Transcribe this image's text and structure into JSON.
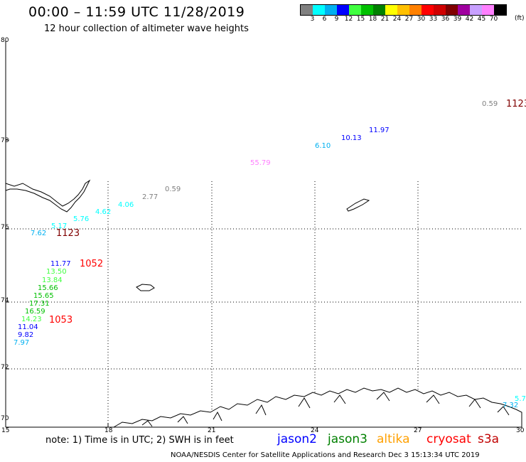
{
  "title": "00:00 – 11:59 UTC 11/28/2019",
  "subtitle": "12 hour collection of altimeter wave heights",
  "legend": {
    "colors": [
      "#808080",
      "#00ffff",
      "#00b0f0",
      "#0000ff",
      "#40ff40",
      "#00c000",
      "#008000",
      "#ffff00",
      "#ffc000",
      "#ff8000",
      "#ff0000",
      "#d00000",
      "#800000",
      "#a000a0",
      "#c8a0ff",
      "#ff80ff",
      "#000000"
    ],
    "ticks": [
      "3",
      "6",
      "9",
      "12",
      "15",
      "18",
      "21",
      "24",
      "27",
      "30",
      "33",
      "36",
      "39",
      "42",
      "45",
      "70"
    ],
    "unit": "(ft)"
  },
  "axes": {
    "lat_labels": [
      "80",
      "78",
      "76",
      "74",
      "72",
      "70"
    ],
    "lon_labels": [
      "15",
      "18",
      "21",
      "24",
      "27",
      "30"
    ]
  },
  "measurements": [
    {
      "text": "0.59",
      "color": "#808080"
    },
    {
      "text": "11.97",
      "color": "#0000ff"
    },
    {
      "text": "10.13",
      "color": "#0000ff"
    },
    {
      "text": "6.10",
      "color": "#00b0f0"
    },
    {
      "text": "55.79",
      "color": "#ff80ff"
    },
    {
      "text": "0.59",
      "color": "#808080"
    },
    {
      "text": "2.77",
      "color": "#808080"
    },
    {
      "text": "4.06",
      "color": "#00ffff"
    },
    {
      "text": "4.62",
      "color": "#00ffff"
    },
    {
      "text": "5.76",
      "color": "#00ffff"
    },
    {
      "text": "5.17",
      "color": "#00ffff"
    },
    {
      "text": "7.62",
      "color": "#00b0f0"
    },
    {
      "text": "11.77",
      "color": "#0000ff"
    },
    {
      "text": "13.50",
      "color": "#40ff40"
    },
    {
      "text": "13.84",
      "color": "#40ff40"
    },
    {
      "text": "15.66",
      "color": "#00c000"
    },
    {
      "text": "15.65",
      "color": "#00c000"
    },
    {
      "text": "17.31",
      "color": "#00c000"
    },
    {
      "text": "16.59",
      "color": "#00c000"
    },
    {
      "text": "14.23",
      "color": "#40ff40"
    },
    {
      "text": "11.04",
      "color": "#0000ff"
    },
    {
      "text": "9.82",
      "color": "#0000ff"
    },
    {
      "text": "7.97",
      "color": "#00b0f0"
    },
    {
      "text": "5.7",
      "color": "#00ffff"
    },
    {
      "text": "7.32",
      "color": "#00b0f0"
    }
  ],
  "times": [
    {
      "text": "1123",
      "color": "#800000"
    },
    {
      "text": "1123",
      "color": "#800000"
    },
    {
      "text": "1052",
      "color": "#ff0000"
    },
    {
      "text": "1053",
      "color": "#ff0000"
    }
  ],
  "note": "note: 1) Time is in UTC; 2) SWH is in feet",
  "satellites": [
    {
      "name": "jason2",
      "color": "#0000ff"
    },
    {
      "name": "jason3",
      "color": "#008000"
    },
    {
      "name": "altika",
      "color": "#ffa000"
    },
    {
      "name": "cryosat",
      "color": "#ff0000"
    },
    {
      "name": "s3a",
      "color": "#c00000"
    }
  ],
  "footer": "NOAA/NESDIS Center for Satellite Applications and Research    Dec  3 15:13:34 UTC 2019"
}
